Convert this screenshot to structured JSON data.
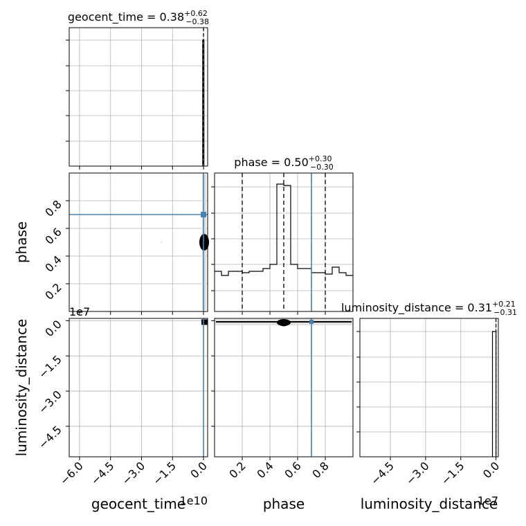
{
  "chart_data": {
    "type": "corner",
    "parameters": [
      "geocent_time",
      "phase",
      "luminosity_distance"
    ],
    "injection": {
      "phase": 0.7
    },
    "titles": [
      {
        "name": "geocent_time",
        "median": "0.38",
        "plus": "+0.62",
        "minus": "−0.38"
      },
      {
        "name": "phase",
        "median": "0.50",
        "plus": "+0.30",
        "minus": "−0.30"
      },
      {
        "name": "luminosity_distance",
        "median": "0.31",
        "plus": "+0.21",
        "minus": "−0.31"
      }
    ],
    "ranges": {
      "geocent_time": [
        -65000000000.0,
        2000000000.0
      ],
      "phase": [
        0.0,
        1.0
      ],
      "luminosity_distance": [
        -58000000.0,
        1000000.0
      ]
    },
    "ticks": {
      "geocent_time": {
        "values": [
          -6.0,
          -4.5,
          -3.0,
          -1.5,
          0.0
        ],
        "labels": [
          "−6.0",
          "−4.5",
          "−3.0",
          "−1.5",
          "0.0"
        ],
        "offset": "1e10",
        "scale": 10000000000.0
      },
      "phase": {
        "values": [
          0.2,
          0.4,
          0.6,
          0.8
        ],
        "labels": [
          "0.2",
          "0.4",
          "0.6",
          "0.8"
        ]
      },
      "luminosity_distance": {
        "values": [
          -4.5,
          -3.0,
          -1.5,
          0.0
        ],
        "labels": [
          "−4.5",
          "−3.0",
          "−1.5",
          "0.0"
        ],
        "offset": "1e7",
        "scale": 10000000.0
      }
    },
    "quantiles": {
      "phase": [
        0.2,
        0.5,
        0.8
      ],
      "geocent_time": [
        0.0
      ],
      "luminosity_distance": [
        0.0
      ]
    },
    "phase_histogram": {
      "edges": [
        0.0,
        0.05,
        0.1,
        0.15,
        0.2,
        0.25,
        0.3,
        0.35,
        0.4,
        0.45,
        0.5,
        0.55,
        0.6,
        0.65,
        0.7,
        0.75,
        0.8,
        0.85,
        0.9,
        0.95,
        1.0
      ],
      "counts": [
        0.29,
        0.26,
        0.29,
        0.29,
        0.28,
        0.29,
        0.29,
        0.31,
        0.34,
        0.92,
        0.91,
        0.34,
        0.31,
        0.31,
        0.28,
        0.28,
        0.27,
        0.32,
        0.28,
        0.26
      ]
    },
    "grid": true,
    "colors": {
      "injection": "#4682b4",
      "contour": "#000000",
      "grid": "#b0b0b0"
    }
  }
}
